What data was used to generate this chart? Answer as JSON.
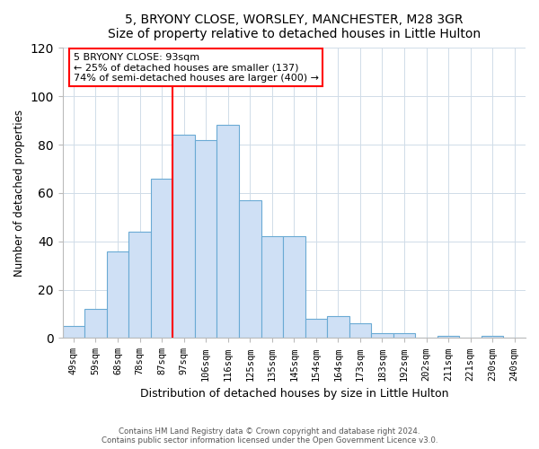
{
  "title": "5, BRYONY CLOSE, WORSLEY, MANCHESTER, M28 3GR",
  "subtitle": "Size of property relative to detached houses in Little Hulton",
  "xlabel": "Distribution of detached houses by size in Little Hulton",
  "ylabel": "Number of detached properties",
  "footnote1": "Contains HM Land Registry data © Crown copyright and database right 2024.",
  "footnote2": "Contains public sector information licensed under the Open Government Licence v3.0.",
  "bar_labels": [
    "49sqm",
    "59sqm",
    "68sqm",
    "78sqm",
    "87sqm",
    "97sqm",
    "106sqm",
    "116sqm",
    "125sqm",
    "135sqm",
    "145sqm",
    "154sqm",
    "164sqm",
    "173sqm",
    "183sqm",
    "192sqm",
    "202sqm",
    "211sqm",
    "221sqm",
    "230sqm",
    "240sqm"
  ],
  "bar_values": [
    5,
    12,
    36,
    44,
    66,
    84,
    82,
    88,
    57,
    42,
    42,
    8,
    9,
    6,
    2,
    2,
    0,
    1,
    0,
    1,
    0
  ],
  "bar_color": "#cfe0f5",
  "bar_edge_color": "#6aaad4",
  "vline_x_index": 5,
  "vline_color": "red",
  "ylim": [
    0,
    120
  ],
  "yticks": [
    0,
    20,
    40,
    60,
    80,
    100,
    120
  ],
  "annotation_title": "5 BRYONY CLOSE: 93sqm",
  "annotation_line1": "← 25% of detached houses are smaller (137)",
  "annotation_line2": "74% of semi-detached houses are larger (400) →",
  "annotation_box_color": "#ffffff",
  "annotation_box_edge": "red",
  "grid_color": "#d0dce8"
}
